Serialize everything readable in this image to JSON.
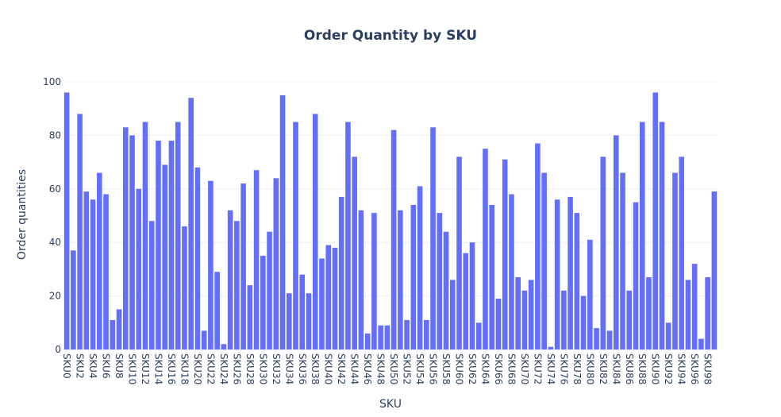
{
  "chart_data": {
    "type": "bar",
    "title": "Order Quantity by SKU",
    "xlabel": "SKU",
    "ylabel": "Order quantities",
    "ylim": [
      0,
      100
    ],
    "yticks": [
      0,
      20,
      40,
      60,
      80,
      100
    ],
    "grid": true,
    "bar_color": "#636efa",
    "categories": [
      "SKU0",
      "SKU1",
      "SKU2",
      "SKU3",
      "SKU4",
      "SKU5",
      "SKU6",
      "SKU7",
      "SKU8",
      "SKU9",
      "SKU10",
      "SKU11",
      "SKU12",
      "SKU13",
      "SKU14",
      "SKU15",
      "SKU16",
      "SKU17",
      "SKU18",
      "SKU19",
      "SKU20",
      "SKU21",
      "SKU22",
      "SKU23",
      "SKU24",
      "SKU25",
      "SKU26",
      "SKU27",
      "SKU28",
      "SKU29",
      "SKU30",
      "SKU31",
      "SKU32",
      "SKU33",
      "SKU34",
      "SKU35",
      "SKU36",
      "SKU37",
      "SKU38",
      "SKU39",
      "SKU40",
      "SKU41",
      "SKU42",
      "SKU43",
      "SKU44",
      "SKU45",
      "SKU46",
      "SKU47",
      "SKU48",
      "SKU49",
      "SKU50",
      "SKU51",
      "SKU52",
      "SKU53",
      "SKU54",
      "SKU55",
      "SKU56",
      "SKU57",
      "SKU58",
      "SKU59",
      "SKU60",
      "SKU61",
      "SKU62",
      "SKU63",
      "SKU64",
      "SKU65",
      "SKU66",
      "SKU67",
      "SKU68",
      "SKU69",
      "SKU70",
      "SKU71",
      "SKU72",
      "SKU73",
      "SKU74",
      "SKU75",
      "SKU76",
      "SKU77",
      "SKU78",
      "SKU79",
      "SKU80",
      "SKU81",
      "SKU82",
      "SKU83",
      "SKU84",
      "SKU85",
      "SKU86",
      "SKU87",
      "SKU88",
      "SKU89",
      "SKU90",
      "SKU91",
      "SKU92",
      "SKU93",
      "SKU94",
      "SKU95",
      "SKU96",
      "SKU97",
      "SKU98",
      "SKU99"
    ],
    "tick_labels": [
      "SKU0",
      "SKU2",
      "SKU4",
      "SKU6",
      "SKU8",
      "SKU10",
      "SKU12",
      "SKU14",
      "SKU16",
      "SKU18",
      "SKU20",
      "SKU22",
      "SKU24",
      "SKU26",
      "SKU28",
      "SKU30",
      "SKU32",
      "SKU34",
      "SKU36",
      "SKU38",
      "SKU40",
      "SKU42",
      "SKU44",
      "SKU46",
      "SKU48",
      "SKU50",
      "SKU52",
      "SKU54",
      "SKU56",
      "SKU58",
      "SKU60",
      "SKU62",
      "SKU64",
      "SKU66",
      "SKU68",
      "SKU70",
      "SKU72",
      "SKU74",
      "SKU76",
      "SKU78",
      "SKU80",
      "SKU82",
      "SKU84",
      "SKU86",
      "SKU88",
      "SKU90",
      "SKU92",
      "SKU94",
      "SKU96",
      "SKU98"
    ],
    "values": [
      96,
      37,
      88,
      59,
      56,
      66,
      58,
      11,
      15,
      83,
      80,
      60,
      85,
      48,
      78,
      69,
      78,
      85,
      46,
      94,
      68,
      7,
      63,
      29,
      2,
      52,
      48,
      62,
      24,
      67,
      35,
      44,
      64,
      95,
      21,
      85,
      28,
      21,
      88,
      34,
      39,
      38,
      57,
      85,
      72,
      52,
      6,
      51,
      9,
      9,
      82,
      52,
      11,
      54,
      61,
      11,
      83,
      51,
      44,
      26,
      72,
      36,
      40,
      10,
      75,
      54,
      19,
      71,
      58,
      27,
      22,
      26,
      77,
      66,
      1,
      56,
      22,
      57,
      51,
      20,
      41,
      8,
      72,
      7,
      80,
      66,
      22,
      55,
      85,
      27,
      96,
      85,
      10,
      66,
      72,
      26,
      32,
      4,
      27,
      59
    ]
  }
}
